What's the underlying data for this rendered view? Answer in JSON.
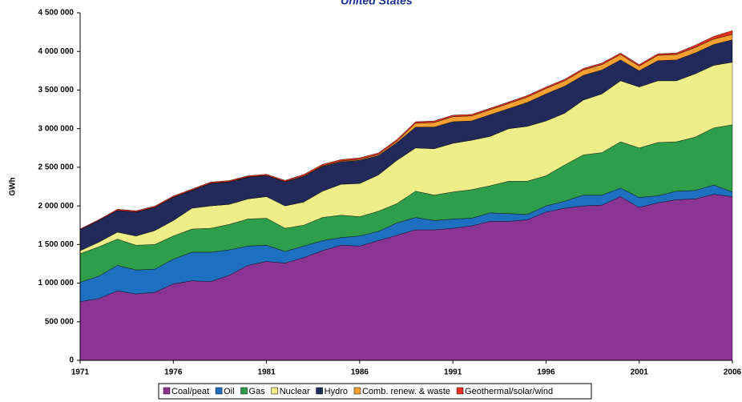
{
  "chart_data": {
    "type": "stacked_area",
    "title": "United States",
    "ylabel": "GWh",
    "x": [
      1971,
      1972,
      1973,
      1974,
      1975,
      1976,
      1977,
      1978,
      1979,
      1980,
      1981,
      1982,
      1983,
      1984,
      1985,
      1986,
      1987,
      1988,
      1989,
      1990,
      1991,
      1992,
      1993,
      1994,
      1995,
      1996,
      1997,
      1998,
      1999,
      2000,
      2001,
      2002,
      2003,
      2004,
      2005,
      2006
    ],
    "xlim": [
      1971,
      2006
    ],
    "xticks": [
      1971,
      1976,
      1981,
      1986,
      1991,
      1996,
      2001,
      2006
    ],
    "ylim": [
      0,
      4500000
    ],
    "yticks": [
      0,
      {
        "value": 500000,
        "label": "500 000"
      },
      {
        "value": 1000000,
        "label": "1 000 000"
      },
      {
        "value": 1500000,
        "label": "1 500 000"
      },
      {
        "value": 2000000,
        "label": "2 000 000"
      },
      {
        "value": 2500000,
        "label": "2 500 000"
      },
      {
        "value": 3000000,
        "label": "3 000 000"
      },
      {
        "value": 3500000,
        "label": "3 500 000"
      },
      {
        "value": 4000000,
        "label": "4 000 000"
      },
      {
        "value": 4500000,
        "label": "4 500 000"
      }
    ],
    "grid": false,
    "legend": "bottom",
    "series": [
      {
        "name": "Coal/peat",
        "color": "#8a3594",
        "values": [
          760000,
          800000,
          900000,
          860000,
          880000,
          990000,
          1030000,
          1020000,
          1100000,
          1230000,
          1280000,
          1260000,
          1330000,
          1420000,
          1490000,
          1480000,
          1550000,
          1620000,
          1690000,
          1690000,
          1710000,
          1740000,
          1800000,
          1800000,
          1820000,
          1920000,
          1970000,
          2000000,
          2010000,
          2120000,
          1980000,
          2040000,
          2080000,
          2090000,
          2150000,
          2120000
        ]
      },
      {
        "name": "Oil",
        "color": "#1f6fc0",
        "values": [
          250000,
          290000,
          330000,
          310000,
          300000,
          320000,
          370000,
          380000,
          330000,
          250000,
          210000,
          150000,
          150000,
          130000,
          100000,
          130000,
          120000,
          160000,
          160000,
          120000,
          120000,
          100000,
          110000,
          100000,
          70000,
          80000,
          90000,
          140000,
          130000,
          110000,
          130000,
          90000,
          110000,
          110000,
          120000,
          60000
        ]
      },
      {
        "name": "Gas",
        "color": "#2e9e4a",
        "values": [
          370000,
          380000,
          340000,
          320000,
          320000,
          300000,
          300000,
          310000,
          330000,
          350000,
          350000,
          300000,
          270000,
          300000,
          290000,
          250000,
          260000,
          250000,
          340000,
          330000,
          350000,
          370000,
          350000,
          420000,
          430000,
          390000,
          470000,
          520000,
          550000,
          600000,
          640000,
          690000,
          640000,
          690000,
          740000,
          870000
        ]
      },
      {
        "name": "Nuclear",
        "color": "#eeee88",
        "values": [
          40000,
          60000,
          90000,
          120000,
          180000,
          200000,
          270000,
          290000,
          260000,
          260000,
          280000,
          290000,
          300000,
          340000,
          400000,
          430000,
          470000,
          560000,
          560000,
          600000,
          630000,
          640000,
          640000,
          680000,
          710000,
          710000,
          670000,
          710000,
          760000,
          790000,
          790000,
          800000,
          790000,
          820000,
          810000,
          810000
        ]
      },
      {
        "name": "Hydro",
        "color": "#222a5c",
        "values": [
          270000,
          280000,
          280000,
          310000,
          300000,
          300000,
          230000,
          290000,
          290000,
          280000,
          270000,
          310000,
          330000,
          320000,
          290000,
          300000,
          250000,
          230000,
          270000,
          280000,
          280000,
          250000,
          280000,
          260000,
          310000,
          350000,
          350000,
          320000,
          310000,
          270000,
          210000,
          260000,
          270000,
          270000,
          270000,
          290000
        ]
      },
      {
        "name": "Comb. renew. & waste",
        "color": "#f5a030",
        "values": [
          2000,
          2000,
          2000,
          2000,
          2000,
          3000,
          3000,
          3000,
          3000,
          5000,
          5000,
          6000,
          7000,
          8000,
          10000,
          12000,
          15000,
          20000,
          50000,
          60000,
          65000,
          65000,
          65000,
          66000,
          70000,
          70000,
          70000,
          70000,
          70000,
          70000,
          60000,
          70000,
          70000,
          70000,
          70000,
          70000
        ]
      },
      {
        "name": "Geothermal/solar/wind",
        "color": "#e83020",
        "values": [
          10000,
          10000,
          15000,
          15000,
          15000,
          15000,
          15000,
          15000,
          15000,
          15000,
          15000,
          15000,
          20000,
          20000,
          20000,
          20000,
          20000,
          20000,
          20000,
          20000,
          20000,
          20000,
          20000,
          20000,
          20000,
          20000,
          20000,
          20000,
          20000,
          20000,
          20000,
          20000,
          20000,
          30000,
          35000,
          50000
        ]
      }
    ]
  }
}
